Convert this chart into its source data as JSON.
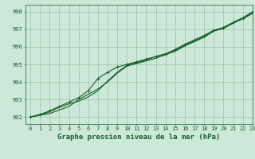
{
  "title": "Graphe pression niveau de la mer (hPa)",
  "bg_color": "#cce8d8",
  "grid_color": "#99c4aa",
  "line_color": "#1a5c2a",
  "xlim": [
    -0.5,
    23
  ],
  "ylim": [
    991.6,
    998.4
  ],
  "yticks": [
    992,
    993,
    994,
    995,
    996,
    997,
    998
  ],
  "xticks": [
    0,
    1,
    2,
    3,
    4,
    5,
    6,
    7,
    8,
    9,
    10,
    11,
    12,
    13,
    14,
    15,
    16,
    17,
    18,
    19,
    20,
    21,
    22,
    23
  ],
  "series": [
    [
      992.0,
      992.1,
      992.2,
      992.4,
      992.6,
      993.0,
      993.3,
      993.6,
      994.0,
      994.5,
      994.9,
      995.05,
      995.2,
      995.35,
      995.55,
      995.75,
      996.05,
      996.3,
      996.55,
      996.9,
      997.1,
      997.35,
      997.65,
      997.95
    ],
    [
      992.0,
      992.1,
      992.3,
      992.55,
      992.75,
      992.9,
      993.15,
      993.5,
      994.05,
      994.55,
      994.95,
      995.1,
      995.25,
      995.45,
      995.6,
      995.8,
      996.1,
      996.35,
      996.6,
      996.9,
      997.05,
      997.35,
      997.6,
      997.9
    ],
    [
      992.0,
      992.15,
      992.35,
      992.6,
      992.85,
      993.1,
      993.5,
      994.2,
      994.55,
      994.85,
      995.0,
      995.15,
      995.3,
      995.45,
      995.6,
      995.85,
      996.15,
      996.4,
      996.65,
      996.95,
      997.1,
      997.4,
      997.65,
      998.0
    ]
  ],
  "marker_series": 2,
  "marker_size": 2.5,
  "linewidth": 0.8,
  "title_fontsize": 6.5,
  "tick_fontsize": 5.0
}
